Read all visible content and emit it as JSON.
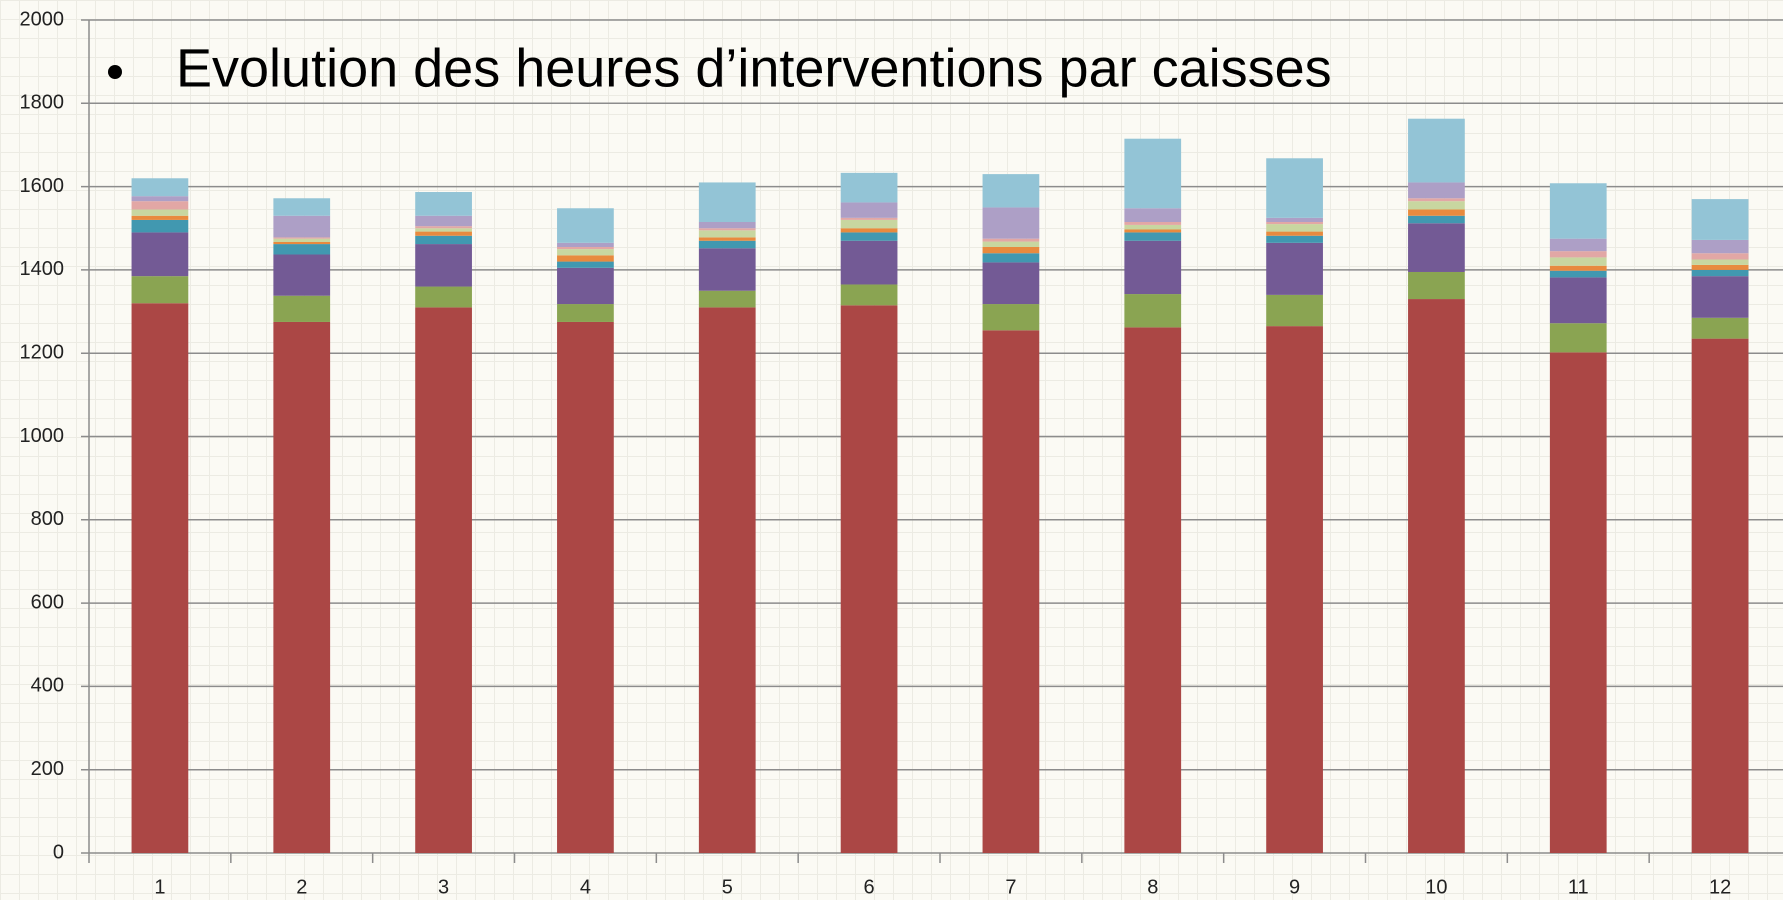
{
  "chart_data": {
    "type": "stacked_bar",
    "title": "Evolution des heures d’interventions par caisses",
    "categories": [
      "1",
      "2",
      "3",
      "4",
      "5",
      "6",
      "7",
      "8",
      "9",
      "10",
      "11",
      "12"
    ],
    "ylim": [
      0,
      2000
    ],
    "yticks": [
      0,
      200,
      400,
      600,
      800,
      1000,
      1200,
      1400,
      1600,
      1800,
      2000
    ],
    "grid": true,
    "series": [
      {
        "color": "#ab4745",
        "values": [
          1320,
          1275,
          1310,
          1275,
          1310,
          1315,
          1255,
          1262,
          1265,
          1330,
          1202,
          1235
        ]
      },
      {
        "color": "#8aa452",
        "values": [
          65,
          63,
          50,
          43,
          40,
          50,
          63,
          80,
          75,
          65,
          70,
          50
        ]
      },
      {
        "color": "#735a95",
        "values": [
          105,
          99,
          102,
          87,
          102,
          105,
          100,
          128,
          125,
          117,
          110,
          100
        ]
      },
      {
        "color": "#4198b0",
        "values": [
          30,
          25,
          20,
          15,
          18,
          20,
          22,
          20,
          17,
          18,
          16,
          15
        ]
      },
      {
        "color": "#e88a3e",
        "values": [
          10,
          5,
          10,
          15,
          8,
          10,
          15,
          7,
          10,
          15,
          12,
          12
        ]
      },
      {
        "color": "#c8d6a0",
        "values": [
          15,
          8,
          8,
          15,
          17,
          20,
          13,
          11,
          18,
          20,
          20,
          13
        ]
      },
      {
        "color": "#e2a7a5",
        "values": [
          20,
          3,
          5,
          5,
          5,
          5,
          7,
          7,
          5,
          7,
          15,
          15
        ]
      },
      {
        "color": "#ad9fc6",
        "values": [
          12,
          52,
          25,
          10,
          15,
          37,
          75,
          33,
          10,
          38,
          30,
          32
        ]
      },
      {
        "color": "#93c4d6",
        "values": [
          43,
          42,
          57,
          83,
          95,
          71,
          80,
          167,
          143,
          153,
          133,
          98
        ]
      }
    ]
  }
}
